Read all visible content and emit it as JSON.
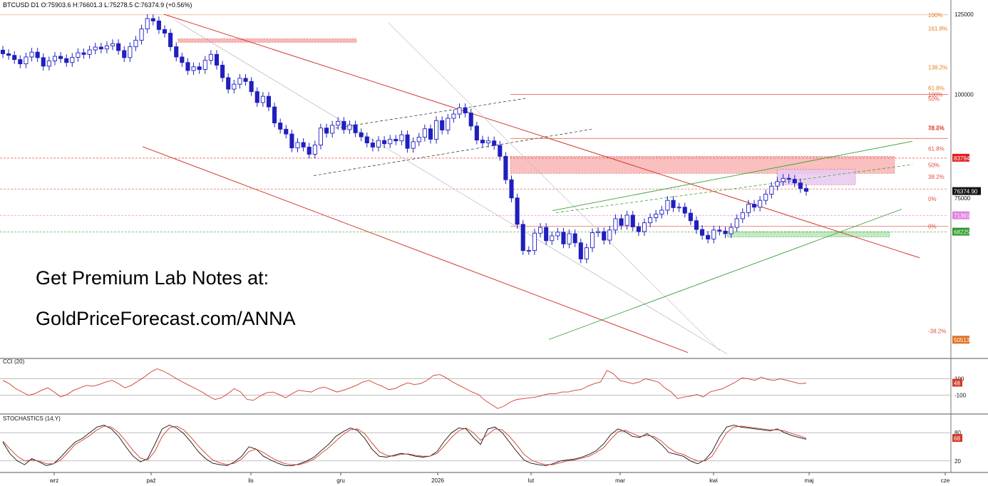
{
  "header": {
    "symbol_line": "BTCUSD  D1  O:75903.6  H:76601.3  L:75278.5  C:76374.9  (+0.56%)"
  },
  "promo": {
    "line1": "Get Premium Lab Notes at:",
    "line2": "GoldPriceForecast.com/ANNA"
  },
  "colors": {
    "up_candle": "#ffffff",
    "down_candle": "#1f1fbf",
    "resistance_zone": "#f9b4b4",
    "support_zone": "#b8e6b8",
    "consolidation_zone": "#e8c8f0",
    "red_line": "#d13a2a",
    "green_line": "#3aa03a",
    "fib_orange": "#e0802a",
    "fib_red": "#e05040"
  },
  "chart_data": [
    {
      "type": "candlestick",
      "title": "BTCUSD D1",
      "x_tick_labels": [
        "wrz",
        "paź",
        "lis",
        "gru",
        "2026",
        "lut",
        "mar",
        "kwi",
        "maj",
        "cze"
      ],
      "y_tick_labels": [
        "125000",
        "100000",
        "75000"
      ],
      "ylim": [
        48000,
        127000
      ],
      "scale": "log",
      "price_labels": [
        {
          "value": "83794",
          "color": "#e02020"
        },
        {
          "value": "76374.90",
          "color": "#111111"
        },
        {
          "value": "71391",
          "color": "#e080e0"
        },
        {
          "value": "68225",
          "color": "#2a9a2a"
        },
        {
          "value": "50513",
          "color": "#e07020"
        }
      ],
      "fib_labels_upper": [
        "100%",
        "161.8%",
        "138.2%",
        "61.8%",
        "100%",
        "50%",
        "38.2%",
        "78.6%",
        "61.8%",
        "50%",
        "38.2%",
        "0%"
      ],
      "fib_labels_lower": [
        "0%",
        "-38.2%"
      ],
      "zones": [
        {
          "name": "resistance",
          "from": 80300,
          "to": 84200
        },
        {
          "name": "consolidation",
          "from": 77800,
          "to": 81200
        },
        {
          "name": "support",
          "from": 67300,
          "to": 68300
        }
      ],
      "candles_close": [
        112000,
        111500,
        110200,
        108900,
        111000,
        112500,
        110800,
        108200,
        109800,
        111200,
        110500,
        109300,
        110900,
        112300,
        111800,
        113200,
        114100,
        113500,
        114500,
        115200,
        113000,
        110800,
        114200,
        116300,
        120000,
        123500,
        122700,
        119800,
        118600,
        114200,
        111000,
        109300,
        106900,
        108000,
        107200,
        110000,
        111800,
        108500,
        104800,
        101500,
        102900,
        104600,
        103700,
        100800,
        97800,
        99500,
        96600,
        92400,
        90800,
        89600,
        86200,
        87500,
        86400,
        84700,
        86900,
        91100,
        89800,
        91800,
        92800,
        90700,
        91900,
        89900,
        88900,
        87400,
        86400,
        88000,
        87200,
        88300,
        87900,
        89400,
        86100,
        87700,
        88800,
        90900,
        88300,
        93000,
        90600,
        93600,
        94700,
        96400,
        95000,
        91600,
        88100,
        87400,
        87900,
        86800,
        84200,
        78900,
        75000,
        69700,
        64800,
        64800,
        68000,
        69100,
        66600,
        67500,
        68200,
        66000,
        67900,
        66200,
        63300,
        65300,
        68100,
        68300,
        66700,
        68600,
        70800,
        69500,
        71500,
        69200,
        68300,
        70000,
        71000,
        71700,
        72500,
        74500,
        73000,
        73100,
        71900,
        70400,
        68700,
        67600,
        66900,
        68600,
        68400,
        67900,
        69100,
        70800,
        72000,
        73700,
        73100,
        74500,
        75800,
        77500,
        78500,
        79200,
        79000,
        78200,
        77000,
        76400
      ],
      "volume": []
    },
    {
      "type": "line",
      "title": "CCI (20)",
      "y_tick_labels": [
        "100",
        "-100"
      ],
      "current_value": "48",
      "series": [
        {
          "name": "",
          "color": "#d13a2a",
          "values": [
            80,
            40,
            -20,
            -60,
            -100,
            -80,
            -40,
            -10,
            -60,
            -120,
            -90,
            -40,
            -10,
            20,
            10,
            30,
            60,
            80,
            40,
            -10,
            20,
            70,
            120,
            180,
            220,
            190,
            150,
            100,
            60,
            20,
            -20,
            -60,
            -110,
            -150,
            -130,
            -80,
            -20,
            -60,
            -150,
            -160,
            -110,
            -70,
            -60,
            -90,
            -130,
            -80,
            -40,
            -50,
            -60,
            -20,
            0,
            -30,
            -60,
            -40,
            -10,
            20,
            60,
            80,
            40,
            10,
            -30,
            -20,
            20,
            50,
            30,
            40,
            80,
            140,
            150,
            110,
            60,
            20,
            -20,
            -60,
            -90,
            -160,
            -210,
            -260,
            -230,
            -180,
            -150,
            -140,
            -130,
            -120,
            -100,
            -80,
            -80,
            -60,
            -60,
            -40,
            -30,
            10,
            40,
            60,
            200,
            160,
            80,
            60,
            40,
            60,
            100,
            80,
            60,
            -10,
            -60,
            -140,
            -120,
            -110,
            -90,
            -120,
            -60,
            -40,
            -20,
            20,
            60,
            110,
            100,
            80,
            120,
            90,
            80,
            100,
            80,
            60,
            40,
            48
          ]
        }
      ]
    },
    {
      "type": "line",
      "title": "STOCHASTICS (14,Y)",
      "y_tick_labels": [
        "80",
        "20"
      ],
      "current_value": "68",
      "series": [
        {
          "name": "",
          "color": "#111111",
          "values": [
            60,
            35,
            20,
            12,
            25,
            18,
            10,
            14,
            28,
            45,
            60,
            68,
            80,
            92,
            96,
            88,
            72,
            50,
            30,
            18,
            25,
            55,
            88,
            96,
            90,
            78,
            60,
            40,
            25,
            15,
            12,
            10,
            18,
            30,
            50,
            45,
            30,
            22,
            15,
            10,
            10,
            14,
            20,
            28,
            42,
            55,
            72,
            82,
            90,
            85,
            68,
            45,
            30,
            28,
            32,
            36,
            34,
            30,
            28,
            30,
            40,
            62,
            80,
            90,
            88,
            70,
            55,
            88,
            92,
            80,
            60,
            40,
            22,
            15,
            12,
            10,
            14,
            20,
            22,
            24,
            28,
            34,
            42,
            56,
            76,
            88,
            82,
            72,
            70,
            78,
            68,
            55,
            38,
            34,
            30,
            20,
            14,
            22,
            40,
            70,
            92,
            96,
            92,
            90,
            88,
            86,
            84,
            88,
            80,
            74,
            70,
            66
          ]
        },
        {
          "name": "",
          "color": "#d13a2a",
          "values": [
            62,
            45,
            30,
            20,
            22,
            20,
            14,
            14,
            22,
            38,
            55,
            64,
            74,
            86,
            94,
            92,
            80,
            62,
            42,
            26,
            22,
            40,
            72,
            90,
            94,
            86,
            70,
            52,
            36,
            22,
            16,
            12,
            15,
            24,
            40,
            45,
            38,
            28,
            20,
            14,
            12,
            12,
            17,
            24,
            36,
            48,
            62,
            76,
            86,
            88,
            78,
            58,
            40,
            32,
            30,
            34,
            35,
            32,
            30,
            30,
            36,
            52,
            70,
            84,
            90,
            80,
            64,
            76,
            88,
            86,
            72,
            54,
            34,
            22,
            16,
            12,
            12,
            16,
            20,
            22,
            26,
            30,
            38,
            48,
            66,
            82,
            85,
            78,
            72,
            74,
            72,
            62,
            48,
            38,
            34,
            26,
            20,
            20,
            30,
            55,
            80,
            92,
            94,
            92,
            90,
            88,
            86,
            86,
            84,
            78,
            74,
            68
          ]
        }
      ]
    }
  ]
}
